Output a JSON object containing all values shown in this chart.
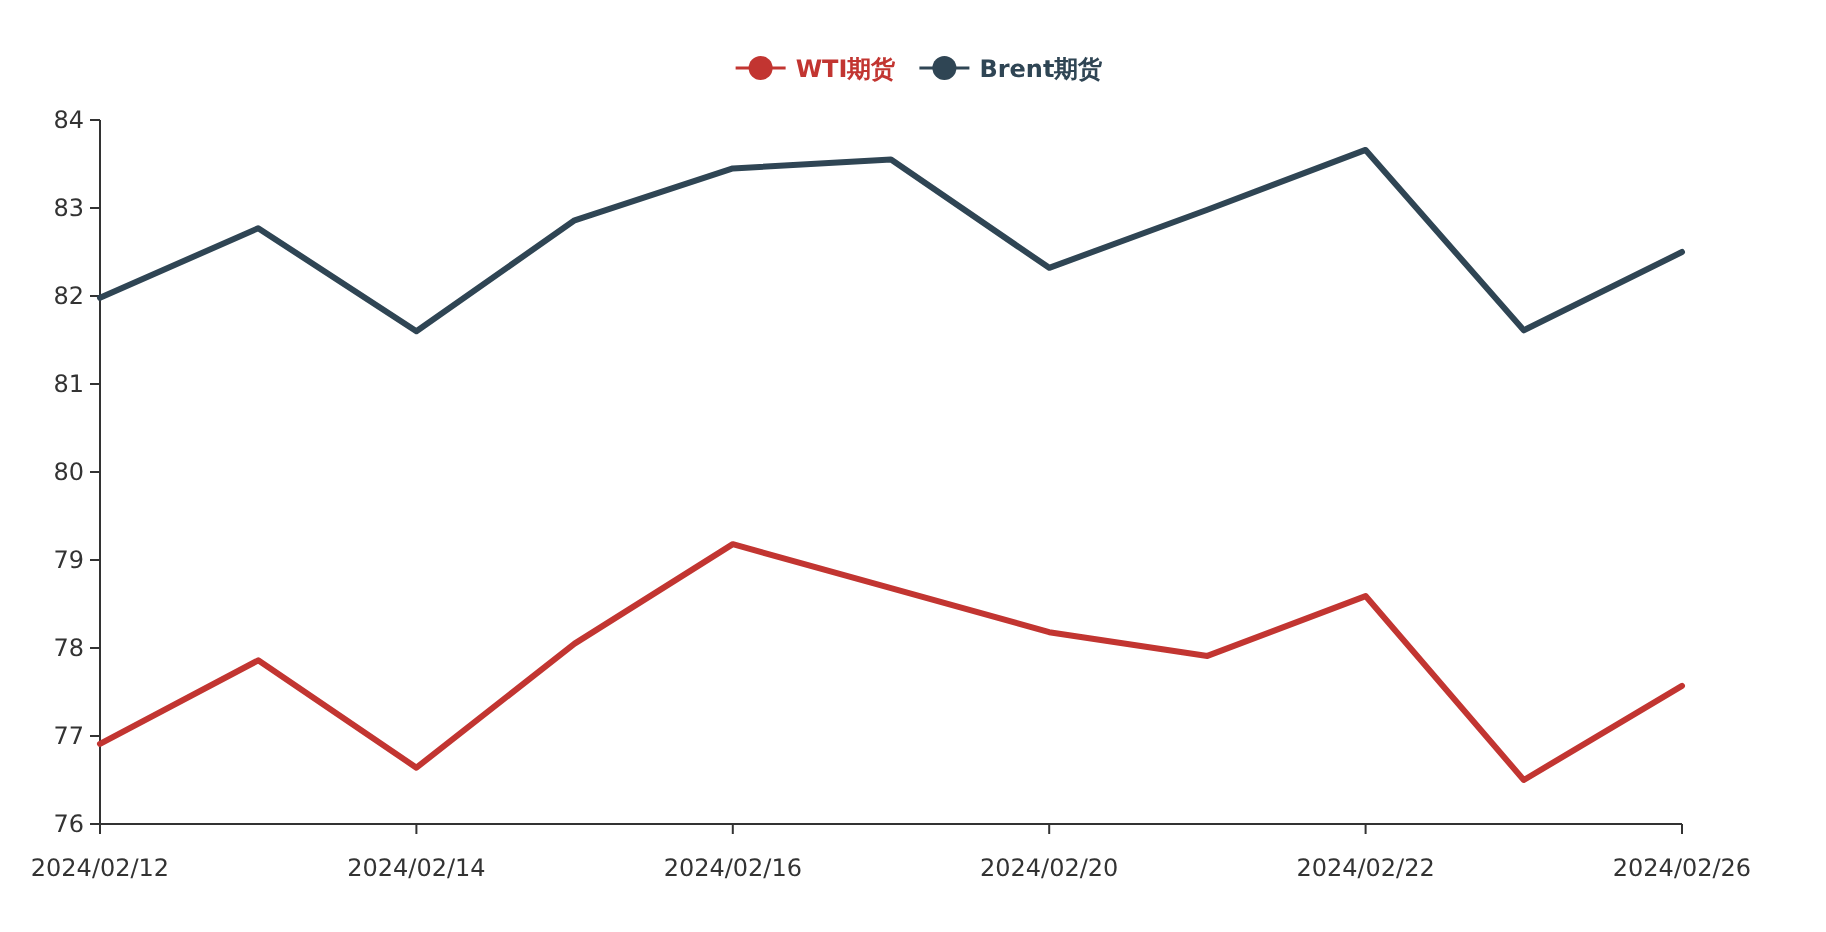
{
  "chart_data": {
    "type": "line",
    "categories": [
      "2024/02/12",
      null,
      "2024/02/14",
      null,
      "2024/02/16",
      null,
      "2024/02/20",
      null,
      "2024/02/22",
      null,
      "2024/02/26"
    ],
    "series": [
      {
        "name": "WTI期货",
        "color": "#c23531",
        "values": [
          76.91,
          77.86,
          76.64,
          78.05,
          79.18,
          78.68,
          78.18,
          77.91,
          78.59,
          76.5,
          77.57
        ]
      },
      {
        "name": "Brent期货",
        "color": "#2f4554",
        "values": [
          81.98,
          82.77,
          81.6,
          82.86,
          83.45,
          83.55,
          82.32,
          82.98,
          83.66,
          81.61,
          82.5
        ]
      }
    ],
    "ylim": [
      76,
      84
    ],
    "yticks": [
      76,
      77,
      78,
      79,
      80,
      81,
      82,
      83,
      84
    ],
    "legend": "top",
    "grid": false,
    "marker": "none",
    "line_style": "solid"
  }
}
